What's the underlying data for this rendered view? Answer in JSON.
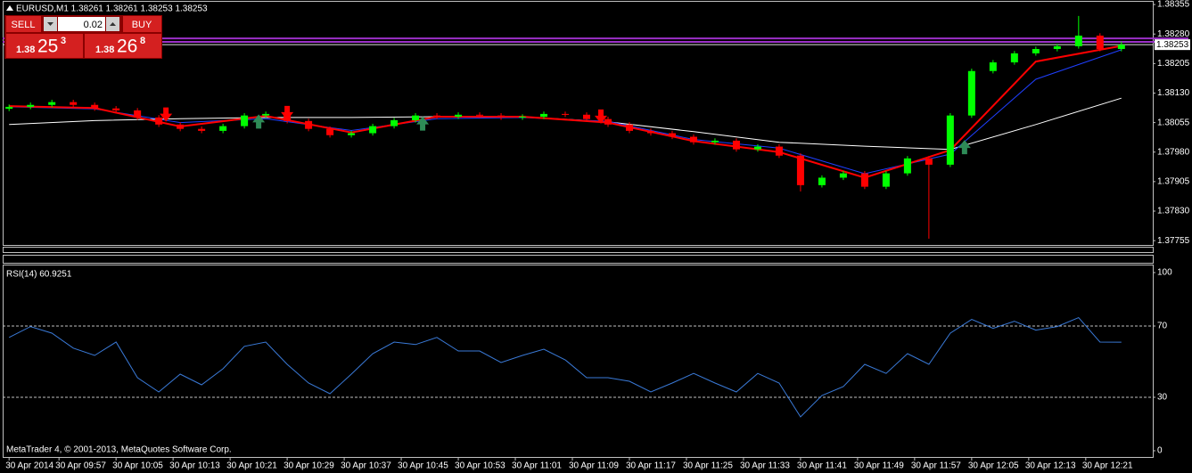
{
  "header": {
    "symbol_line": "EURUSD,M1  1.38261 1.38261 1.38253 1.38253"
  },
  "trade_panel": {
    "sell": "SELL",
    "buy": "BUY",
    "lot": "0.02",
    "bid": {
      "prefix": "1.38",
      "big": "25",
      "small": "3"
    },
    "ask": {
      "prefix": "1.38",
      "big": "26",
      "small": "8"
    }
  },
  "footer": "MetaTrader 4, © 2001-2013, MetaQuotes Software Corp.",
  "chart_data": [
    {
      "type": "candlestick",
      "up_color": "#00ff00",
      "down_color": "#ff0000",
      "xlim": [
        -0.9,
        160.4
      ],
      "ylim": [
        1.37744,
        1.38362
      ],
      "yticks": [
        1.38355,
        {
          "value": 1.3828,
          "label": "1.38280"
        },
        1.38205,
        {
          "value": 1.3813,
          "label": "1.38130"
        },
        1.38055,
        {
          "value": 1.3798,
          "label": "1.37980"
        },
        1.37905,
        {
          "value": 1.3783,
          "label": "1.37830"
        },
        1.37755
      ],
      "x": [
        0,
        3,
        6,
        9,
        12,
        15,
        18,
        21,
        24,
        27,
        30,
        33,
        36,
        39,
        42,
        45,
        48,
        51,
        54,
        57,
        60,
        63,
        66,
        69,
        72,
        75,
        78,
        81,
        84,
        87,
        90,
        93,
        96,
        99,
        102,
        105,
        108,
        111,
        114,
        117,
        120,
        123,
        126,
        129,
        132,
        135,
        138,
        141,
        144,
        147,
        150,
        153,
        156
      ],
      "open": [
        1.3809,
        1.38095,
        1.381,
        1.38107,
        1.381,
        1.38091,
        1.38086,
        1.38068,
        1.3805,
        1.38039,
        1.38034,
        1.38046,
        1.38073,
        1.38077,
        1.38059,
        1.38039,
        1.38023,
        1.38028,
        1.38046,
        1.38061,
        1.38073,
        1.3807,
        1.38075,
        1.38073,
        1.38068,
        1.3807,
        1.38077,
        1.38075,
        1.38064,
        1.3805,
        1.38034,
        1.38028,
        1.38019,
        1.38005,
        1.38009,
        1.37987,
        1.37994,
        1.37971,
        1.37896,
        1.37915,
        1.37926,
        1.37892,
        1.37926,
        1.37964,
        1.37948,
        1.38073,
        1.38186,
        1.38208,
        1.38231,
        1.38242,
        1.38249,
        1.38276,
        1.38242
      ],
      "high": [
        1.38101,
        1.38106,
        1.38113,
        1.38113,
        1.38106,
        1.38097,
        1.38092,
        1.38074,
        1.38056,
        1.38045,
        1.38052,
        1.38079,
        1.38083,
        1.38083,
        1.38065,
        1.38045,
        1.38034,
        1.38052,
        1.38067,
        1.38079,
        1.38079,
        1.38081,
        1.38081,
        1.38079,
        1.38076,
        1.38083,
        1.38083,
        1.38081,
        1.3807,
        1.38056,
        1.3804,
        1.38034,
        1.38025,
        1.38015,
        1.38015,
        1.38,
        1.38,
        1.37977,
        1.37921,
        1.37932,
        1.37932,
        1.37932,
        1.3797,
        1.3797,
        1.38079,
        1.38192,
        1.38214,
        1.38237,
        1.38248,
        1.38255,
        1.38326,
        1.38282,
        1.38261
      ],
      "low": [
        1.38084,
        1.38089,
        1.38094,
        1.38094,
        1.38085,
        1.3808,
        1.38062,
        1.38044,
        1.38033,
        1.38028,
        1.38028,
        1.3804,
        1.38067,
        1.38053,
        1.38033,
        1.38017,
        1.38017,
        1.38022,
        1.3804,
        1.38055,
        1.38064,
        1.38064,
        1.38067,
        1.38062,
        1.38062,
        1.38064,
        1.38069,
        1.38058,
        1.38044,
        1.38028,
        1.38022,
        1.38013,
        1.37999,
        1.37999,
        1.37981,
        1.37981,
        1.37965,
        1.3788,
        1.3789,
        1.37909,
        1.37886,
        1.37886,
        1.3792,
        1.3776,
        1.37942,
        1.38067,
        1.3818,
        1.38202,
        1.38225,
        1.38236,
        1.38243,
        1.38236,
        1.38236
      ],
      "close": [
        1.38095,
        1.381,
        1.38107,
        1.381,
        1.38091,
        1.38086,
        1.38068,
        1.3805,
        1.38039,
        1.38034,
        1.38046,
        1.38073,
        1.38077,
        1.38059,
        1.38039,
        1.38023,
        1.38028,
        1.38046,
        1.38061,
        1.38073,
        1.3807,
        1.38075,
        1.38073,
        1.38068,
        1.3807,
        1.38077,
        1.38075,
        1.38064,
        1.3805,
        1.38034,
        1.38028,
        1.38019,
        1.38005,
        1.38009,
        1.37987,
        1.37994,
        1.37971,
        1.37896,
        1.37915,
        1.37926,
        1.37892,
        1.37926,
        1.37964,
        1.37948,
        1.38073,
        1.38186,
        1.38208,
        1.38231,
        1.38242,
        1.38249,
        1.38276,
        1.38242,
        1.38253
      ],
      "lines": [
        {
          "color": "#ffffff",
          "x": [
            0,
            12,
            24,
            36,
            48,
            60,
            72,
            84,
            96,
            108,
            120,
            132,
            144,
            156
          ],
          "values": [
            1.3805,
            1.3806,
            1.38065,
            1.38068,
            1.38068,
            1.3807,
            1.3807,
            1.38057,
            1.38032,
            1.38005,
            1.37995,
            1.37987,
            1.3805,
            1.38117
          ]
        },
        {
          "color": "#1f3fff",
          "x": [
            0,
            12,
            24,
            36,
            48,
            60,
            72,
            84,
            96,
            108,
            120,
            132,
            144,
            156
          ],
          "values": [
            1.38095,
            1.3809,
            1.38055,
            1.38065,
            1.38035,
            1.38065,
            1.38068,
            1.38058,
            1.38012,
            1.3799,
            1.37925,
            1.37975,
            1.38165,
            1.3824
          ]
        },
        {
          "color": "#ff0000",
          "x": [
            0,
            12,
            24,
            36,
            48,
            60,
            72,
            84,
            96,
            108,
            120,
            132,
            144,
            156
          ],
          "values": [
            1.38097,
            1.38092,
            1.38045,
            1.38072,
            1.3803,
            1.3807,
            1.3807,
            1.38055,
            1.38008,
            1.3798,
            1.37915,
            1.37985,
            1.3821,
            1.3825
          ]
        }
      ],
      "signals": [
        {
          "x": 22,
          "y": 1.38073,
          "color": "#ff0000",
          "direction": "down"
        },
        {
          "x": 39,
          "y": 1.38077,
          "color": "#ff0000",
          "direction": "down"
        },
        {
          "x": 83,
          "y": 1.38068,
          "color": "#ff0000",
          "direction": "down"
        },
        {
          "x": 35,
          "y": 1.3806,
          "color": "#2e8b57",
          "direction": "up"
        },
        {
          "x": 58,
          "y": 1.38055,
          "color": "#2e8b57",
          "direction": "up"
        },
        {
          "x": 134,
          "y": 1.37995,
          "color": "#2e8b57",
          "direction": "up"
        }
      ],
      "hlines": [
        {
          "value": 1.38269,
          "color": "#9b30c8"
        },
        {
          "value": 1.3826,
          "color": "#9b30c8"
        }
      ],
      "bid": 1.38253
    },
    {
      "type": "line",
      "title": "RSI(14) 60.9251",
      "color": "#3a7ad8",
      "xlim": [
        -0.9,
        160.4
      ],
      "ylim": [
        -3.5,
        104
      ],
      "yticks": [
        100,
        70,
        30,
        0
      ],
      "levels": [
        70,
        30
      ],
      "xticks": [
        {
          "value": 0,
          "label": "30 Apr 2014"
        },
        {
          "value": 7,
          "label": "30 Apr 09:57"
        },
        {
          "value": 15,
          "label": "30 Apr 10:05"
        },
        {
          "value": 23,
          "label": "30 Apr 10:13"
        },
        {
          "value": 31,
          "label": "30 Apr 10:21"
        },
        {
          "value": 39,
          "label": "30 Apr 10:29"
        },
        {
          "value": 47,
          "label": "30 Apr 10:37"
        },
        {
          "value": 55,
          "label": "30 Apr 10:45"
        },
        {
          "value": 63,
          "label": "30 Apr 10:53"
        },
        {
          "value": 71,
          "label": "30 Apr 11:01"
        },
        {
          "value": 79,
          "label": "30 Apr 11:09"
        },
        {
          "value": 87,
          "label": "30 Apr 11:17"
        },
        {
          "value": 95,
          "label": "30 Apr 11:25"
        },
        {
          "value": 103,
          "label": "30 Apr 11:33"
        },
        {
          "value": 111,
          "label": "30 Apr 11:41"
        },
        {
          "value": 119,
          "label": "30 Apr 11:49"
        },
        {
          "value": 127,
          "label": "30 Apr 11:57"
        },
        {
          "value": 135,
          "label": "30 Apr 12:05"
        },
        {
          "value": 143,
          "label": "30 Apr 12:13"
        },
        {
          "value": 151,
          "label": "30 Apr 12:21"
        }
      ],
      "x": [
        0,
        3,
        6,
        9,
        12,
        15,
        18,
        21,
        24,
        27,
        30,
        33,
        36,
        39,
        42,
        45,
        48,
        51,
        54,
        57,
        60,
        63,
        66,
        69,
        72,
        75,
        78,
        81,
        84,
        87,
        90,
        93,
        96,
        99,
        102,
        105,
        108,
        111,
        114,
        117,
        120,
        123,
        126,
        129,
        132,
        135,
        138,
        141,
        144,
        147,
        150,
        153,
        156
      ],
      "values": [
        63.6,
        69.7,
        66,
        57.6,
        53.5,
        61,
        41,
        33,
        43,
        37,
        46,
        58.6,
        61,
        48.5,
        38,
        32,
        43,
        54.5,
        61,
        59.6,
        63.6,
        56,
        56,
        49.5,
        53.5,
        57,
        51,
        41,
        41,
        39,
        33,
        38,
        43.4,
        38,
        33,
        43.4,
        38,
        19,
        31,
        36,
        48.5,
        43.4,
        54.5,
        48.5,
        66,
        73.7,
        68.7,
        72.7,
        67.7,
        69.7,
        74.7,
        61,
        60.9251
      ]
    }
  ]
}
